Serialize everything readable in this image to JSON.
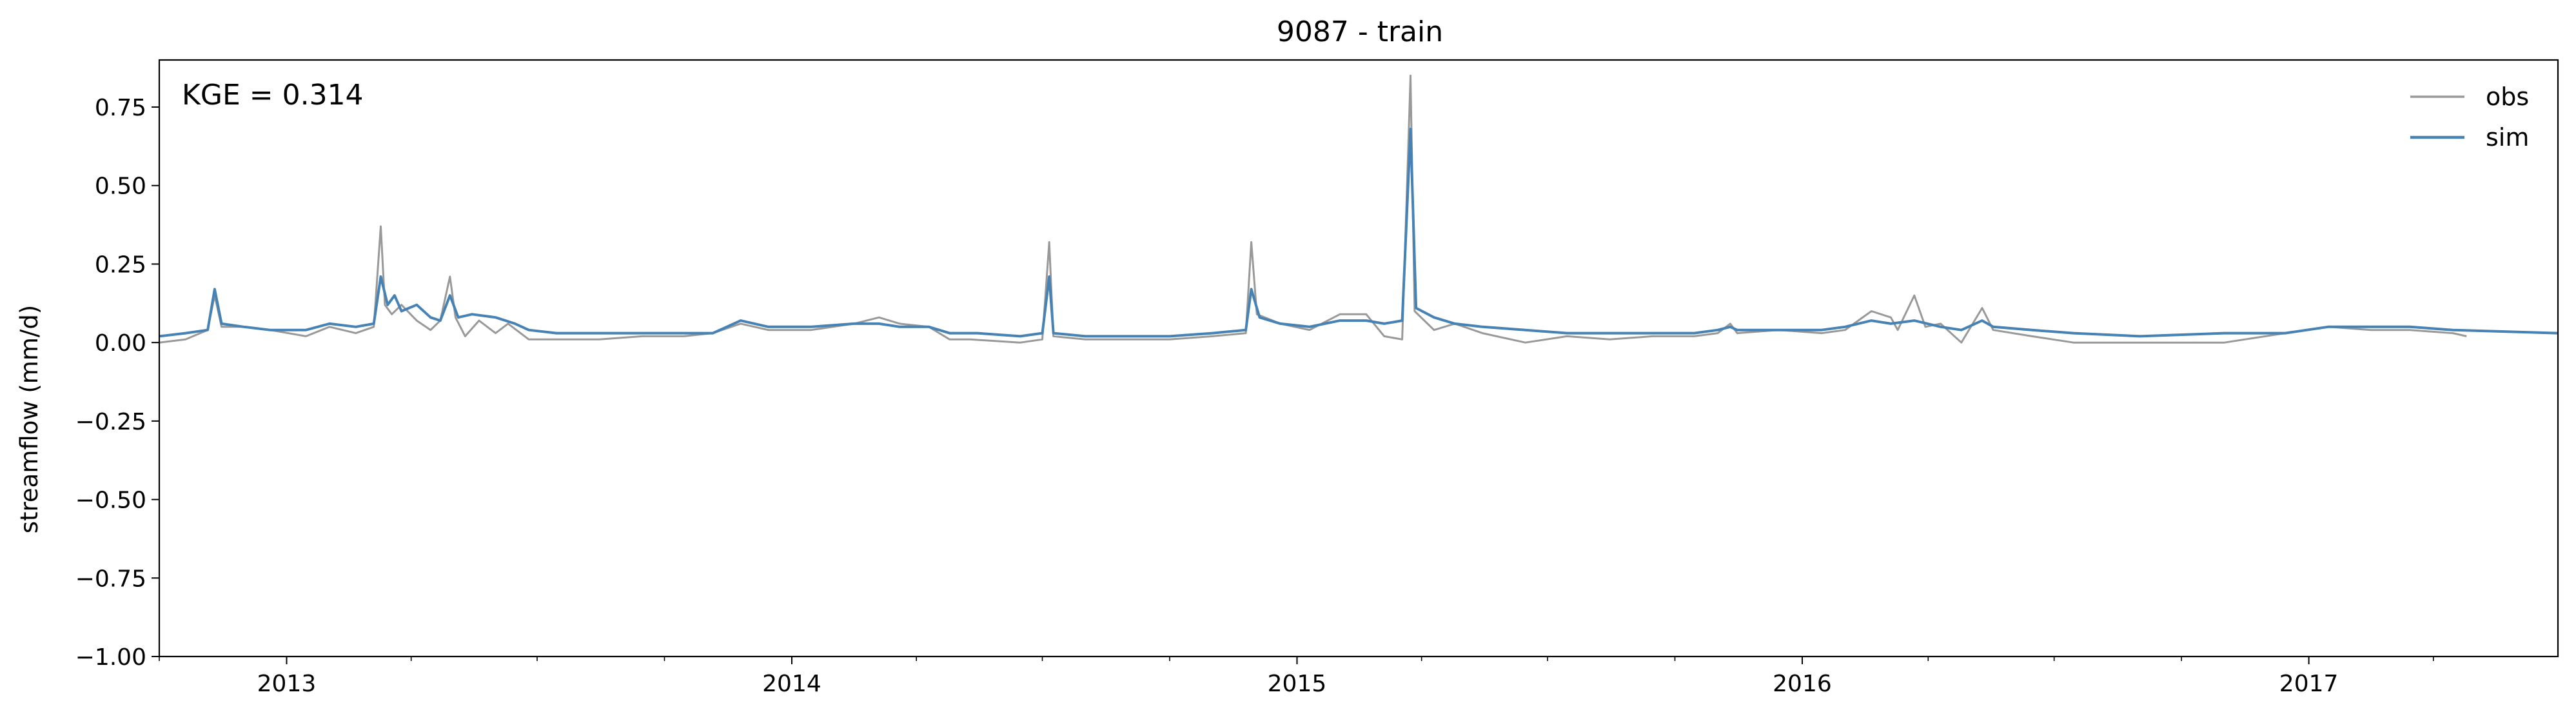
{
  "chart_data": {
    "type": "line",
    "title": "9087 - train",
    "xlabel": "",
    "ylabel": "streamflow (mm/d)",
    "xlim": [
      "2012-10-01",
      "2017-06-30"
    ],
    "ylim": [
      -1.0,
      0.9
    ],
    "grid": false,
    "legend_position": "top-right",
    "annotation": "KGE = 0.314",
    "y_ticks": [
      -1.0,
      -0.75,
      -0.5,
      -0.25,
      0.0,
      0.25,
      0.5,
      0.75
    ],
    "y_tick_labels": [
      "−1.00",
      "−0.75",
      "−0.50",
      "−0.25",
      "0.00",
      "0.25",
      "0.50",
      "0.75"
    ],
    "x_major_ticks": [
      "2013-01-01",
      "2014-01-01",
      "2015-01-01",
      "2016-01-01",
      "2017-01-01"
    ],
    "x_major_tick_labels": [
      "2013",
      "2014",
      "2015",
      "2016",
      "2017"
    ],
    "x_minor_ticks": [
      "2012-10-01",
      "2013-04-01",
      "2013-07-01",
      "2013-10-01",
      "2014-04-01",
      "2014-07-01",
      "2014-10-01",
      "2015-04-01",
      "2015-07-01",
      "2015-10-01",
      "2016-04-01",
      "2016-07-01",
      "2016-10-01",
      "2017-04-01"
    ],
    "series": [
      {
        "name": "obs",
        "color": "#999999",
        "points": [
          [
            "2012-10-01",
            0.0
          ],
          [
            "2012-10-20",
            0.01
          ],
          [
            "2012-11-05",
            0.04
          ],
          [
            "2012-11-10",
            0.15
          ],
          [
            "2012-11-15",
            0.05
          ],
          [
            "2012-12-01",
            0.05
          ],
          [
            "2012-12-20",
            0.04
          ],
          [
            "2013-01-15",
            0.02
          ],
          [
            "2013-02-01",
            0.05
          ],
          [
            "2013-02-20",
            0.03
          ],
          [
            "2013-03-05",
            0.05
          ],
          [
            "2013-03-10",
            0.37
          ],
          [
            "2013-03-13",
            0.12
          ],
          [
            "2013-03-18",
            0.09
          ],
          [
            "2013-03-25",
            0.12
          ],
          [
            "2013-04-05",
            0.07
          ],
          [
            "2013-04-15",
            0.04
          ],
          [
            "2013-04-22",
            0.07
          ],
          [
            "2013-04-29",
            0.21
          ],
          [
            "2013-05-03",
            0.08
          ],
          [
            "2013-05-10",
            0.02
          ],
          [
            "2013-05-20",
            0.07
          ],
          [
            "2013-06-01",
            0.03
          ],
          [
            "2013-06-10",
            0.06
          ],
          [
            "2013-06-25",
            0.01
          ],
          [
            "2013-07-15",
            0.01
          ],
          [
            "2013-08-15",
            0.01
          ],
          [
            "2013-09-15",
            0.02
          ],
          [
            "2013-10-15",
            0.02
          ],
          [
            "2013-11-05",
            0.03
          ],
          [
            "2013-11-25",
            0.06
          ],
          [
            "2013-12-15",
            0.04
          ],
          [
            "2014-01-15",
            0.04
          ],
          [
            "2014-02-15",
            0.06
          ],
          [
            "2014-03-05",
            0.08
          ],
          [
            "2014-03-20",
            0.06
          ],
          [
            "2014-04-10",
            0.05
          ],
          [
            "2014-04-25",
            0.01
          ],
          [
            "2014-05-10",
            0.01
          ],
          [
            "2014-06-15",
            0.0
          ],
          [
            "2014-07-01",
            0.01
          ],
          [
            "2014-07-06",
            0.32
          ],
          [
            "2014-07-09",
            0.02
          ],
          [
            "2014-08-01",
            0.01
          ],
          [
            "2014-09-01",
            0.01
          ],
          [
            "2014-10-01",
            0.01
          ],
          [
            "2014-11-01",
            0.02
          ],
          [
            "2014-11-25",
            0.03
          ],
          [
            "2014-11-29",
            0.32
          ],
          [
            "2014-12-03",
            0.09
          ],
          [
            "2014-12-20",
            0.06
          ],
          [
            "2015-01-10",
            0.04
          ],
          [
            "2015-02-01",
            0.09
          ],
          [
            "2015-02-20",
            0.09
          ],
          [
            "2015-03-05",
            0.02
          ],
          [
            "2015-03-18",
            0.01
          ],
          [
            "2015-03-24",
            0.85
          ],
          [
            "2015-03-27",
            0.1
          ],
          [
            "2015-04-10",
            0.04
          ],
          [
            "2015-04-25",
            0.06
          ],
          [
            "2015-05-15",
            0.03
          ],
          [
            "2015-06-15",
            0.0
          ],
          [
            "2015-07-15",
            0.02
          ],
          [
            "2015-08-15",
            0.01
          ],
          [
            "2015-09-15",
            0.02
          ],
          [
            "2015-10-15",
            0.02
          ],
          [
            "2015-11-01",
            0.03
          ],
          [
            "2015-11-10",
            0.06
          ],
          [
            "2015-11-15",
            0.03
          ],
          [
            "2015-12-15",
            0.04
          ],
          [
            "2016-01-15",
            0.03
          ],
          [
            "2016-02-01",
            0.04
          ],
          [
            "2016-02-20",
            0.1
          ],
          [
            "2016-03-05",
            0.08
          ],
          [
            "2016-03-10",
            0.04
          ],
          [
            "2016-03-22",
            0.15
          ],
          [
            "2016-03-30",
            0.05
          ],
          [
            "2016-04-10",
            0.06
          ],
          [
            "2016-04-25",
            0.0
          ],
          [
            "2016-05-10",
            0.11
          ],
          [
            "2016-05-18",
            0.04
          ],
          [
            "2016-06-15",
            0.02
          ],
          [
            "2016-07-15",
            0.0
          ],
          [
            "2016-09-01",
            0.0
          ],
          [
            "2016-11-01",
            0.0
          ],
          [
            "2016-12-15",
            0.03
          ],
          [
            "2017-01-15",
            0.05
          ],
          [
            "2017-02-15",
            0.04
          ],
          [
            "2017-03-15",
            0.04
          ],
          [
            "2017-04-15",
            0.03
          ],
          [
            "2017-04-25",
            0.02
          ]
        ]
      },
      {
        "name": "sim",
        "color": "#4682b4",
        "points": [
          [
            "2012-10-01",
            0.02
          ],
          [
            "2012-10-20",
            0.03
          ],
          [
            "2012-11-05",
            0.04
          ],
          [
            "2012-11-10",
            0.17
          ],
          [
            "2012-11-15",
            0.06
          ],
          [
            "2012-12-01",
            0.05
          ],
          [
            "2012-12-20",
            0.04
          ],
          [
            "2013-01-15",
            0.04
          ],
          [
            "2013-02-01",
            0.06
          ],
          [
            "2013-02-20",
            0.05
          ],
          [
            "2013-03-05",
            0.06
          ],
          [
            "2013-03-10",
            0.21
          ],
          [
            "2013-03-15",
            0.12
          ],
          [
            "2013-03-20",
            0.15
          ],
          [
            "2013-03-25",
            0.1
          ],
          [
            "2013-04-05",
            0.12
          ],
          [
            "2013-04-15",
            0.08
          ],
          [
            "2013-04-22",
            0.07
          ],
          [
            "2013-04-29",
            0.15
          ],
          [
            "2013-05-05",
            0.08
          ],
          [
            "2013-05-15",
            0.09
          ],
          [
            "2013-06-01",
            0.08
          ],
          [
            "2013-06-15",
            0.06
          ],
          [
            "2013-06-25",
            0.04
          ],
          [
            "2013-07-15",
            0.03
          ],
          [
            "2013-08-15",
            0.03
          ],
          [
            "2013-09-15",
            0.03
          ],
          [
            "2013-10-15",
            0.03
          ],
          [
            "2013-11-05",
            0.03
          ],
          [
            "2013-11-25",
            0.07
          ],
          [
            "2013-12-15",
            0.05
          ],
          [
            "2014-01-15",
            0.05
          ],
          [
            "2014-02-15",
            0.06
          ],
          [
            "2014-03-05",
            0.06
          ],
          [
            "2014-03-20",
            0.05
          ],
          [
            "2014-04-10",
            0.05
          ],
          [
            "2014-04-25",
            0.03
          ],
          [
            "2014-05-15",
            0.03
          ],
          [
            "2014-06-15",
            0.02
          ],
          [
            "2014-07-01",
            0.03
          ],
          [
            "2014-07-06",
            0.21
          ],
          [
            "2014-07-09",
            0.03
          ],
          [
            "2014-08-01",
            0.02
          ],
          [
            "2014-09-01",
            0.02
          ],
          [
            "2014-10-01",
            0.02
          ],
          [
            "2014-11-01",
            0.03
          ],
          [
            "2014-11-25",
            0.04
          ],
          [
            "2014-11-29",
            0.17
          ],
          [
            "2014-12-05",
            0.08
          ],
          [
            "2014-12-20",
            0.06
          ],
          [
            "2015-01-10",
            0.05
          ],
          [
            "2015-02-01",
            0.07
          ],
          [
            "2015-02-20",
            0.07
          ],
          [
            "2015-03-05",
            0.06
          ],
          [
            "2015-03-18",
            0.07
          ],
          [
            "2015-03-24",
            0.68
          ],
          [
            "2015-03-28",
            0.11
          ],
          [
            "2015-04-10",
            0.08
          ],
          [
            "2015-04-25",
            0.06
          ],
          [
            "2015-05-15",
            0.05
          ],
          [
            "2015-06-15",
            0.04
          ],
          [
            "2015-07-15",
            0.03
          ],
          [
            "2015-08-15",
            0.03
          ],
          [
            "2015-09-15",
            0.03
          ],
          [
            "2015-10-15",
            0.03
          ],
          [
            "2015-11-01",
            0.04
          ],
          [
            "2015-11-10",
            0.05
          ],
          [
            "2015-11-15",
            0.04
          ],
          [
            "2015-12-15",
            0.04
          ],
          [
            "2016-01-15",
            0.04
          ],
          [
            "2016-02-01",
            0.05
          ],
          [
            "2016-02-20",
            0.07
          ],
          [
            "2016-03-05",
            0.06
          ],
          [
            "2016-03-22",
            0.07
          ],
          [
            "2016-04-10",
            0.05
          ],
          [
            "2016-04-25",
            0.04
          ],
          [
            "2016-05-10",
            0.07
          ],
          [
            "2016-05-18",
            0.05
          ],
          [
            "2016-06-15",
            0.04
          ],
          [
            "2016-07-15",
            0.03
          ],
          [
            "2016-09-01",
            0.02
          ],
          [
            "2016-11-01",
            0.03
          ],
          [
            "2016-12-15",
            0.03
          ],
          [
            "2017-01-15",
            0.05
          ],
          [
            "2017-02-15",
            0.05
          ],
          [
            "2017-03-15",
            0.05
          ],
          [
            "2017-04-15",
            0.04
          ],
          [
            "2017-06-30",
            0.03
          ]
        ]
      }
    ]
  }
}
